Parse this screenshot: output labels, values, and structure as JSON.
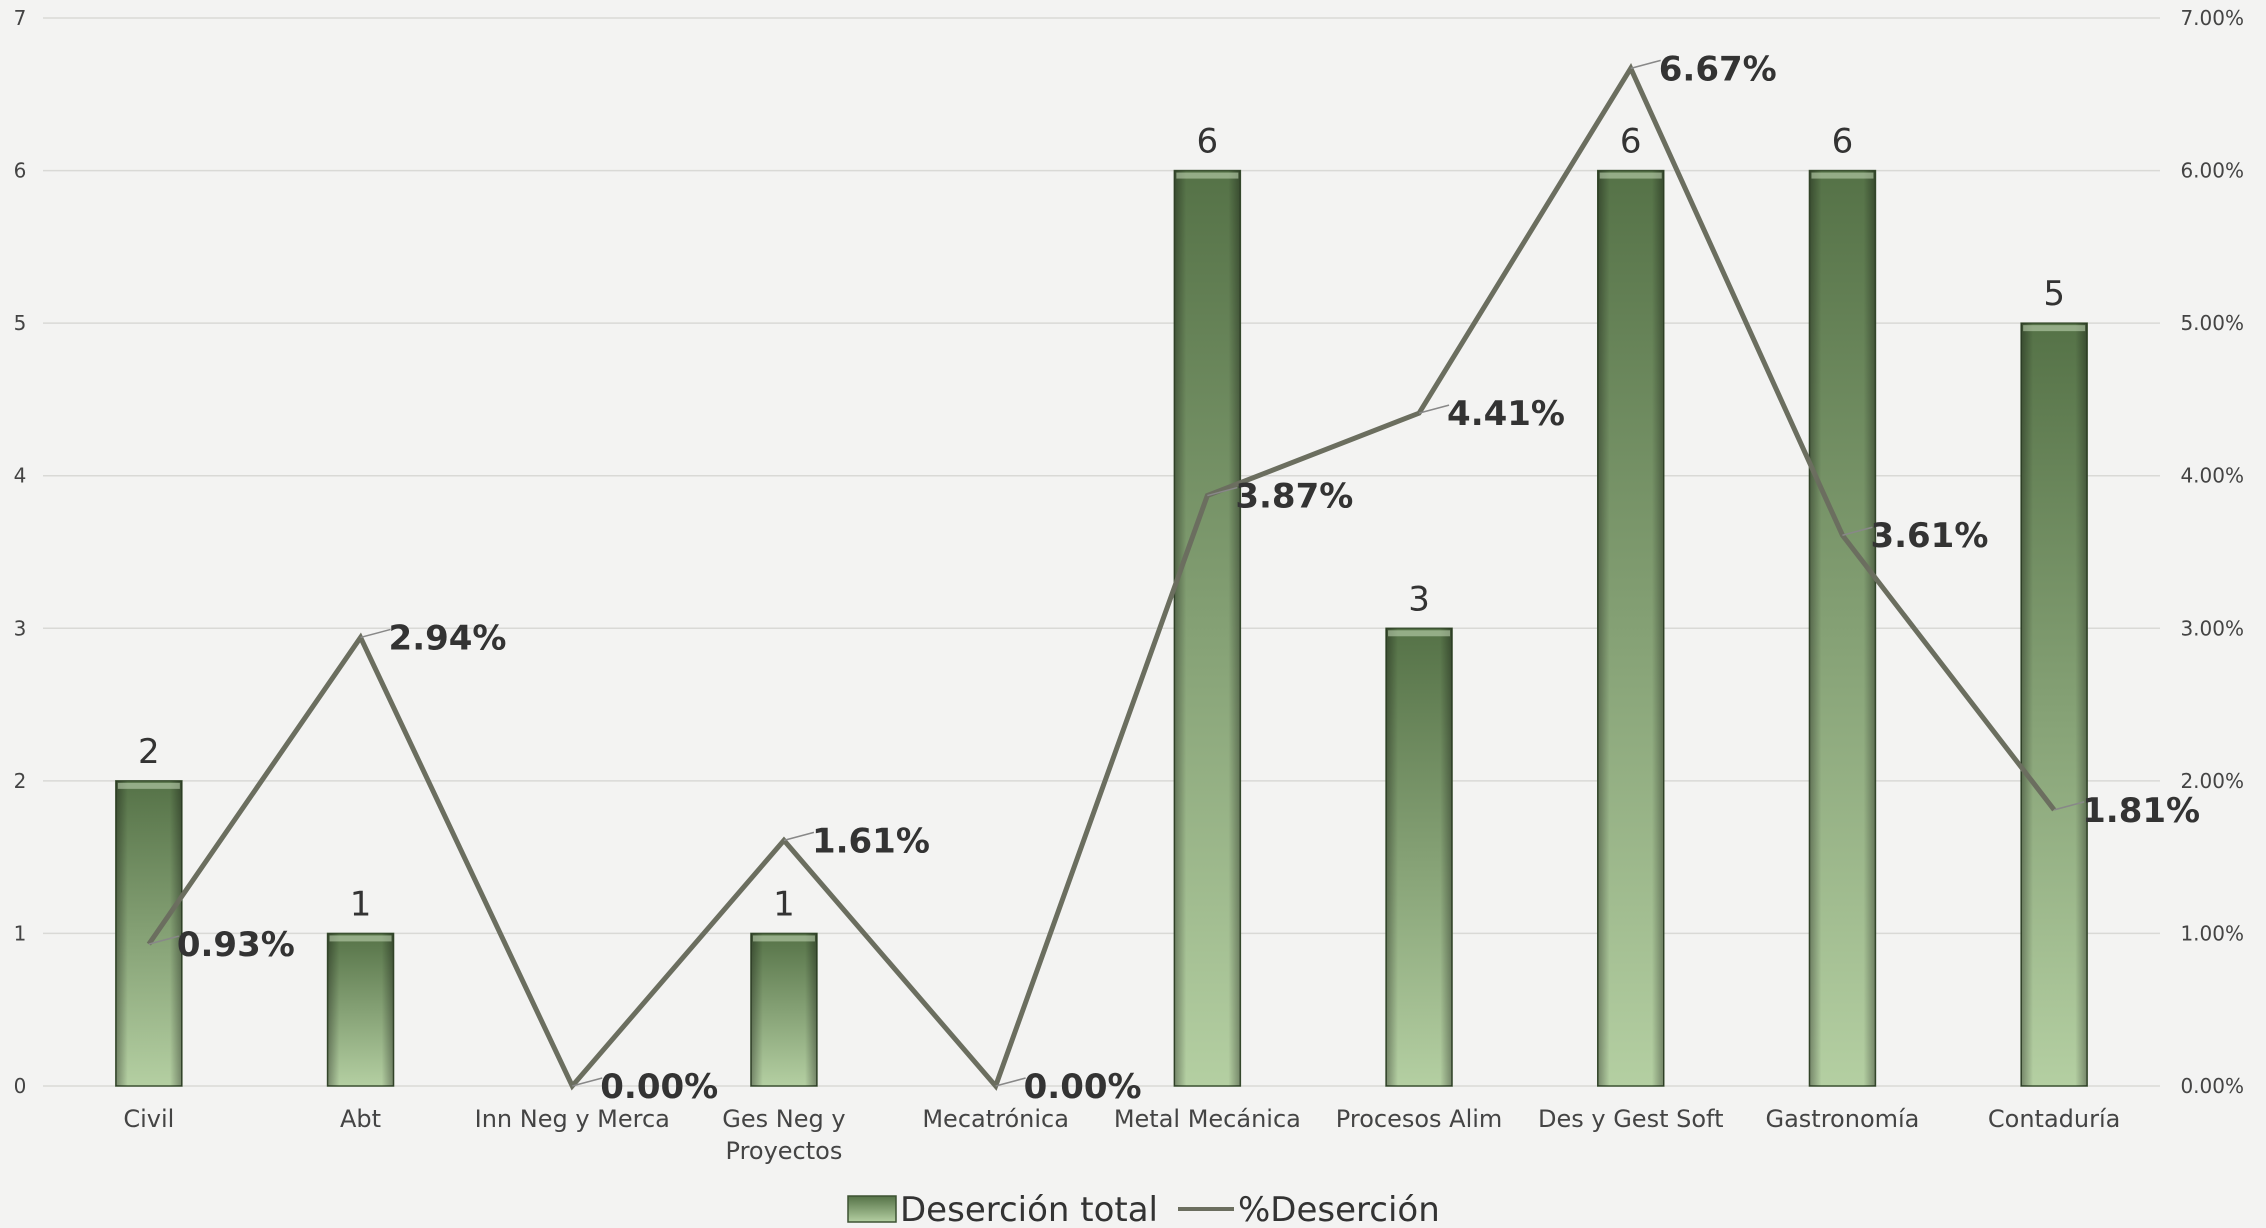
{
  "chart_data": {
    "type": "bar+line",
    "categories": [
      "Civil",
      "Abt",
      "Inn Neg y Merca",
      "Ges Neg y Proyectos",
      "Mecatrónica",
      "Metal Mecánica",
      "Procesos Alim",
      "Des y Gest Soft",
      "Gastronomía",
      "Contaduría"
    ],
    "category_lines": [
      [
        "Civil"
      ],
      [
        "Abt"
      ],
      [
        "Inn Neg y Merca"
      ],
      [
        "Ges Neg y",
        "Proyectos"
      ],
      [
        "Mecatrónica"
      ],
      [
        "Metal Mecánica"
      ],
      [
        "Procesos Alim"
      ],
      [
        "Des y Gest Soft"
      ],
      [
        "Gastronomía"
      ],
      [
        "Contaduría"
      ]
    ],
    "series": [
      {
        "name": "Deserción total",
        "type": "bar",
        "axis": "left",
        "values": [
          2,
          1,
          0,
          1,
          0,
          6,
          3,
          6,
          6,
          5
        ],
        "labels": [
          "2",
          "1",
          "",
          "1",
          "",
          "6",
          "3",
          "6",
          "6",
          "5"
        ],
        "color_top": "#557247",
        "color_bottom": "#b4cfa2"
      },
      {
        "name": "%Deserción",
        "type": "line",
        "axis": "right",
        "values": [
          0.93,
          2.94,
          0.0,
          1.61,
          0.0,
          3.87,
          4.41,
          6.67,
          3.61,
          1.81
        ],
        "labels": [
          "0.93%",
          "2.94%",
          "0.00%",
          "1.61%",
          "0.00%",
          "3.87%",
          "4.41%",
          "6.67%",
          "3.61%",
          "1.81%"
        ],
        "color": "#6b6e5f"
      }
    ],
    "y_left": {
      "min": 0,
      "max": 7,
      "ticks": [
        "0",
        "1",
        "2",
        "3",
        "4",
        "5",
        "6",
        "7"
      ]
    },
    "y_right": {
      "min": 0,
      "max": 7,
      "ticks": [
        "0.00%",
        "1.00%",
        "2.00%",
        "3.00%",
        "4.00%",
        "5.00%",
        "6.00%",
        "7.00%"
      ]
    },
    "grid": true,
    "legend_position": "bottom-center"
  }
}
